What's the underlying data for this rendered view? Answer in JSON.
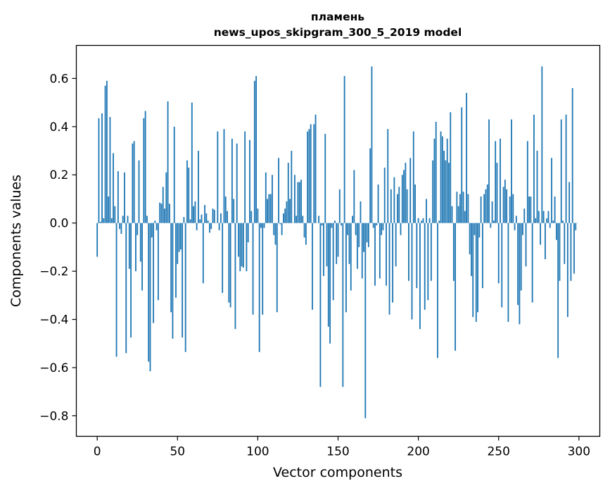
{
  "chart_data": {
    "type": "bar",
    "title": "пламень",
    "subtitle": "news_upos_skipgram_300_5_2019 model",
    "xlabel": "Vector components",
    "ylabel": "Components values",
    "xlim": [
      -13,
      313
    ],
    "ylim": [
      -0.885,
      0.737
    ],
    "x_ticks": [
      0,
      50,
      100,
      150,
      200,
      250,
      300
    ],
    "y_ticks": [
      0.6,
      0.4,
      0.2,
      0.0,
      -0.2,
      -0.4,
      -0.6,
      -0.8
    ],
    "x_tick_labels": [
      "0",
      "50",
      "100",
      "150",
      "200",
      "250",
      "300"
    ],
    "y_tick_labels": [
      "0.6",
      "0.4",
      "0.2",
      "0.0",
      "−0.2",
      "−0.4",
      "−0.6",
      "−0.8"
    ],
    "bar_color": "#1f77b4",
    "grid": false,
    "legend": "none",
    "values": [
      -0.14,
      0.435,
      0.005,
      0.455,
      0.02,
      0.57,
      0.59,
      0.11,
      0.44,
      0.02,
      0.29,
      0.07,
      -0.555,
      0.215,
      -0.025,
      -0.045,
      0.03,
      0.21,
      -0.54,
      0.03,
      -0.19,
      -0.475,
      0.33,
      0.34,
      -0.2,
      -0.05,
      0.26,
      -0.16,
      -0.28,
      0.435,
      0.465,
      0.03,
      -0.575,
      -0.615,
      -0.06,
      -0.415,
      0.01,
      -0.03,
      -0.32,
      0.085,
      0.08,
      0.15,
      0.06,
      0.21,
      0.505,
      0.08,
      -0.37,
      -0.48,
      0.4,
      -0.31,
      -0.17,
      -0.12,
      -0.11,
      -0.475,
      0.025,
      -0.535,
      0.26,
      0.23,
      0.015,
      0.5,
      0.07,
      0.09,
      -0.03,
      0.3,
      0.015,
      0.035,
      -0.25,
      0.075,
      0.04,
      0.01,
      -0.04,
      -0.025,
      0.06,
      0.055,
      0.0,
      0.38,
      -0.03,
      0.04,
      -0.29,
      0.39,
      0.11,
      0.05,
      -0.33,
      -0.35,
      0.35,
      0.1,
      -0.44,
      0.33,
      -0.14,
      -0.2,
      -0.18,
      -0.185,
      0.38,
      -0.2,
      -0.08,
      0.345,
      0.05,
      -0.38,
      0.59,
      0.61,
      0.06,
      -0.535,
      -0.02,
      -0.38,
      -0.02,
      0.21,
      0.1,
      0.12,
      0.12,
      0.2,
      -0.05,
      -0.09,
      -0.37,
      0.27,
      -0.005,
      -0.05,
      0.04,
      0.06,
      0.09,
      0.25,
      0.1,
      0.3,
      0.0,
      0.2,
      0.03,
      0.17,
      0.17,
      0.18,
      0.03,
      -0.06,
      -0.09,
      0.38,
      0.39,
      0.41,
      -0.36,
      0.41,
      0.45,
      0.0,
      0.03,
      -0.68,
      -0.01,
      -0.22,
      0.37,
      -0.18,
      -0.43,
      -0.5,
      -0.02,
      -0.32,
      0.01,
      -0.17,
      -0.14,
      0.14,
      -0.01,
      -0.68,
      0.61,
      -0.37,
      -0.05,
      -0.17,
      -0.28,
      0.03,
      0.22,
      -0.05,
      -0.19,
      -0.1,
      0.09,
      -0.23,
      -0.12,
      -0.81,
      -0.08,
      -0.1,
      0.31,
      0.65,
      -0.02,
      -0.26,
      -0.01,
      0.16,
      -0.23,
      -0.05,
      -0.03,
      0.23,
      -0.26,
      0.39,
      -0.38,
      0.14,
      -0.33,
      0.19,
      -0.18,
      0.12,
      0.15,
      -0.05,
      0.2,
      0.22,
      0.25,
      0.14,
      -0.24,
      0.27,
      -0.4,
      0.38,
      0.16,
      -0.27,
      0.02,
      -0.44,
      0.01,
      0.02,
      -0.36,
      0.1,
      -0.32,
      0.02,
      -0.24,
      0.26,
      0.35,
      0.42,
      -0.56,
      0.01,
      0.38,
      0.36,
      0.3,
      0.26,
      0.35,
      0.25,
      0.46,
      0.07,
      -0.24,
      -0.53,
      0.13,
      0.07,
      0.12,
      0.48,
      0.13,
      0.05,
      0.54,
      0.12,
      -0.13,
      -0.22,
      -0.39,
      -0.05,
      -0.41,
      -0.37,
      -0.06,
      0.11,
      -0.27,
      0.12,
      0.14,
      0.16,
      0.43,
      -0.02,
      0.09,
      0.01,
      0.34,
      0.25,
      -0.25,
      0.35,
      -0.35,
      0.15,
      0.18,
      0.14,
      -0.41,
      0.11,
      0.43,
      0.12,
      -0.03,
      0.03,
      -0.34,
      -0.42,
      -0.28,
      -0.05,
      0.06,
      -0.18,
      0.34,
      0.11,
      0.11,
      -0.33,
      0.45,
      0.02,
      0.3,
      0.05,
      -0.09,
      0.65,
      0.05,
      -0.15,
      0.02,
      0.05,
      -0.02,
      0.27,
      0.01,
      0.11,
      -0.07,
      -0.56,
      -0.24,
      0.43,
      0.01,
      -0.17,
      0.45,
      -0.39,
      0.17,
      -0.24,
      0.56,
      -0.21,
      -0.03,
      0.0
    ]
  }
}
